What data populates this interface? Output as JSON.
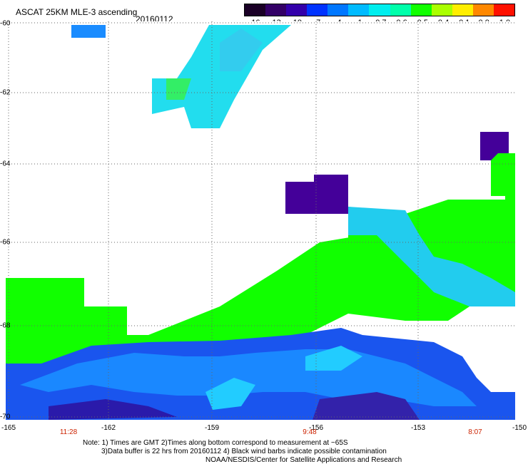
{
  "header": {
    "title": "ASCAT 25KM MLE-3 ascending",
    "date": "20160112"
  },
  "colorbar": {
    "labels": [
      "-16",
      "-13",
      "-10",
      "-7",
      "-4",
      "-1",
      "-0.7",
      "-0.6",
      "-0.5",
      "-0.4",
      "-0.1",
      "0.0",
      "1.0"
    ],
    "colors": [
      "#1a0026",
      "#330066",
      "#3300aa",
      "#0033ff",
      "#0077ff",
      "#00bbff",
      "#00eeee",
      "#00ffaa",
      "#11ff00",
      "#aaff00",
      "#ffee00",
      "#ff8800",
      "#ff1100"
    ]
  },
  "axes": {
    "y_labels": [
      "-60",
      "-62",
      "-64",
      "-66",
      "-68",
      "-70"
    ],
    "x_labels": [
      "-165",
      "-162",
      "-159",
      "-156",
      "-153",
      "-150"
    ],
    "time_labels": [
      "11:28",
      "9:48",
      "8:07"
    ]
  },
  "notes": {
    "line1": "Note: 1) Times are GMT 2)Times along bottom correspond to measurement at ~65S",
    "line2": "3)Data buffer is 22 hrs from 20160112 4) Black wind barbs indicate possible contamination",
    "line3": "NOAA/NESDIS/Center for Satellite Applications and Research"
  }
}
